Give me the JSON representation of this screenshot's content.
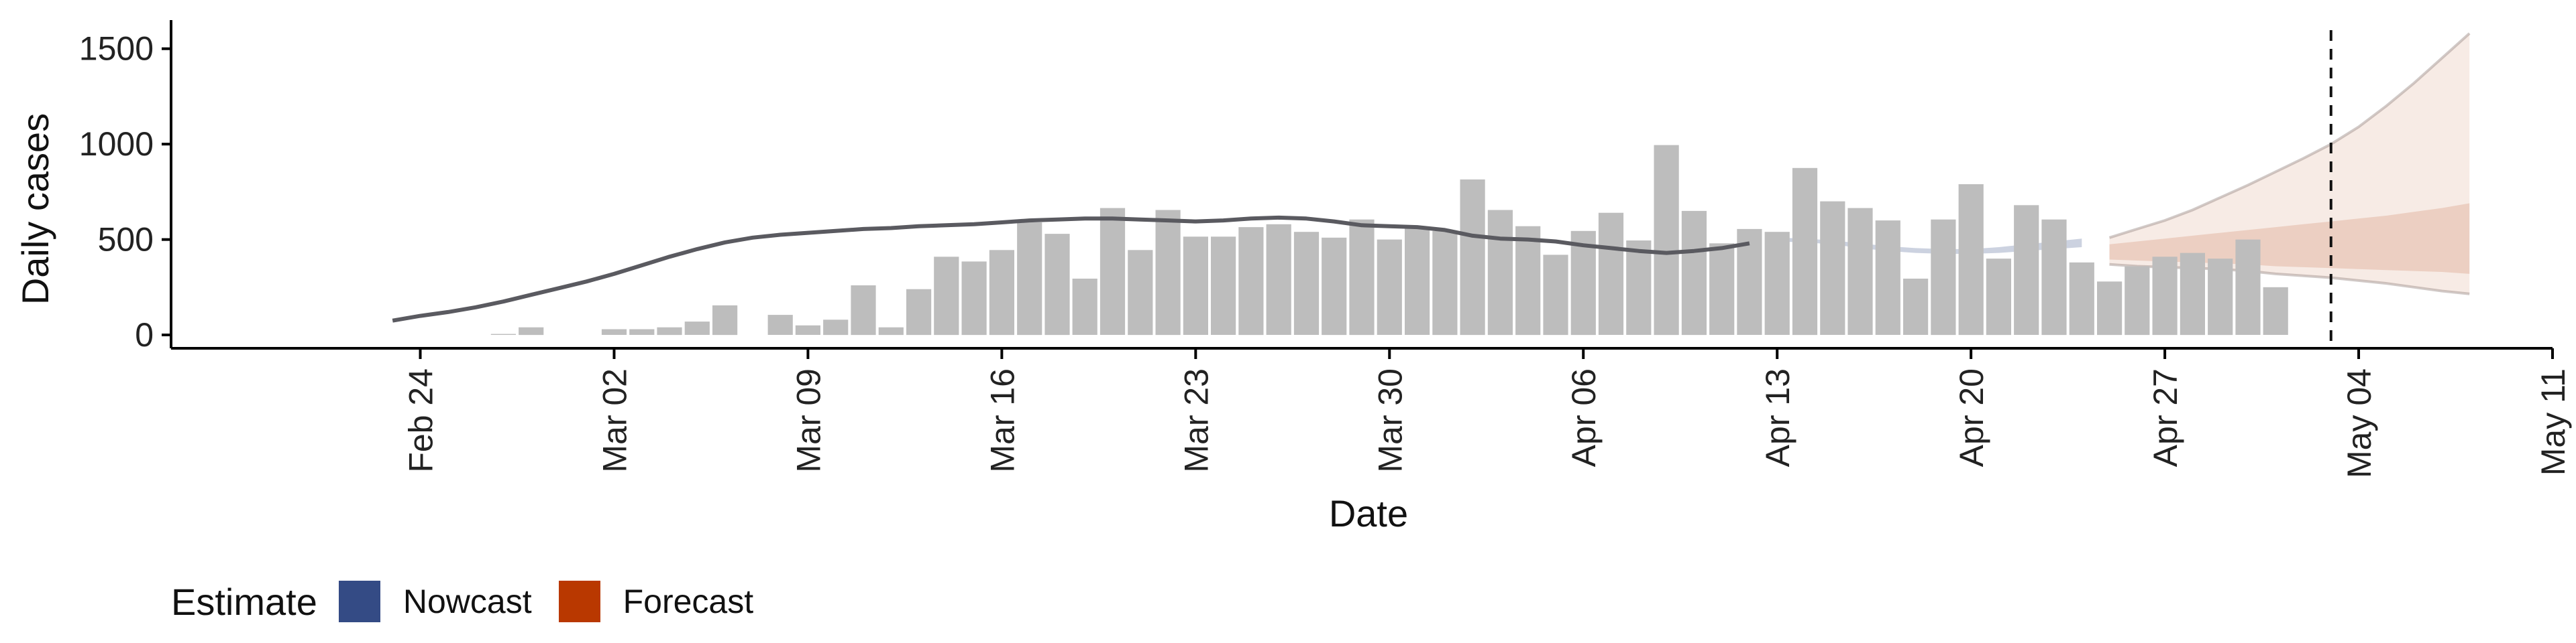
{
  "chart_data": {
    "type": "bar",
    "xlabel": "Date",
    "ylabel": "Daily cases",
    "x_ticks": [
      "Feb 24",
      "Mar 02",
      "Mar 09",
      "Mar 16",
      "Mar 23",
      "Mar 30",
      "Apr 06",
      "Apr 13",
      "Apr 20",
      "Apr 27",
      "May 04",
      "May 11"
    ],
    "y_ticks": [
      0,
      500,
      1000,
      1500
    ],
    "ylim": [
      -70,
      1650
    ],
    "xlim": [
      "2020-02-15",
      "2020-05-11"
    ],
    "bars": {
      "start_date": "2020-02-23",
      "values": [
        0,
        0,
        0,
        0,
        5,
        40,
        0,
        0,
        30,
        30,
        40,
        70,
        155,
        0,
        105,
        50,
        80,
        260,
        40,
        240,
        410,
        385,
        445,
        590,
        530,
        295,
        665,
        445,
        655,
        515,
        515,
        565,
        580,
        540,
        510,
        605,
        500,
        560,
        545,
        815,
        655,
        570,
        420,
        545,
        640,
        495,
        995,
        650,
        480,
        555,
        540,
        875,
        700,
        665,
        600,
        295,
        605,
        790,
        400,
        680,
        605,
        380,
        280,
        360,
        410,
        430,
        400,
        500,
        250
      ]
    },
    "estimate_line": {
      "start_date": "2020-02-23",
      "values": [
        75,
        100,
        120,
        145,
        175,
        210,
        245,
        280,
        320,
        365,
        410,
        450,
        485,
        510,
        525,
        535,
        545,
        555,
        560,
        570,
        575,
        580,
        590,
        600,
        605,
        610,
        610,
        605,
        600,
        595,
        600,
        610,
        615,
        610,
        595,
        575,
        570,
        565,
        550,
        520,
        505,
        500,
        490,
        470,
        455,
        440,
        430,
        440,
        455,
        480
      ]
    },
    "nowcast_band": {
      "start_date": "2020-04-13",
      "lower": [
        490,
        485,
        475,
        455,
        440,
        430,
        425,
        425,
        430,
        440,
        450,
        460
      ],
      "upper": [
        510,
        505,
        495,
        480,
        465,
        455,
        450,
        450,
        460,
        475,
        490,
        505
      ]
    },
    "forecast_band": {
      "start_date": "2020-04-25",
      "inner_lower": [
        395,
        390,
        385,
        380,
        375,
        370,
        360,
        355,
        350,
        345,
        340,
        335,
        330,
        320
      ],
      "inner_upper": [
        475,
        490,
        505,
        520,
        535,
        550,
        565,
        580,
        595,
        610,
        625,
        645,
        665,
        690
      ],
      "outer_lower": [
        370,
        360,
        355,
        350,
        345,
        335,
        320,
        310,
        300,
        285,
        270,
        250,
        230,
        215
      ],
      "outer_upper": [
        510,
        555,
        600,
        655,
        720,
        785,
        855,
        925,
        1000,
        1090,
        1200,
        1320,
        1450,
        1580
      ]
    },
    "vline_date": "2020-05-03",
    "legend": {
      "title": "Estimate",
      "position": "bottom",
      "items": [
        {
          "label": "Nowcast",
          "color": "#344b85"
        },
        {
          "label": "Forecast",
          "color": "#b93800"
        }
      ]
    },
    "colors": {
      "bar": "#bdbdbd",
      "line": "#5a5a60",
      "nowcast_fill": "#344b85",
      "forecast_fill": "#d9a38a",
      "axis": "#000000"
    }
  }
}
